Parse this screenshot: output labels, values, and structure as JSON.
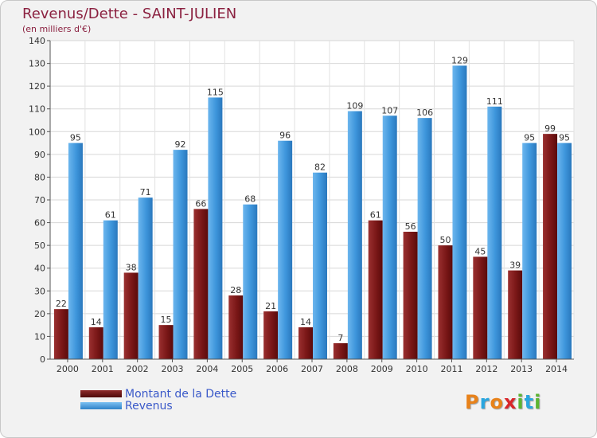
{
  "title": "Revenus/Dette - SAINT-JULIEN",
  "subtitle": "(en milliers d'€)",
  "logo": {
    "letters": [
      "P",
      "r",
      "o",
      "x",
      "i",
      "t",
      "i"
    ],
    "colors": [
      "#e8821a",
      "#2aa6df",
      "#e8821a",
      "#d9262a",
      "#5cb531",
      "#2aa6df",
      "#5cb531"
    ]
  },
  "colors": {
    "dette": "#7b1a1a",
    "revenus": "#3d95db",
    "title": "#8b2140",
    "legend_text": "#3a59c9"
  },
  "chart_data": {
    "type": "bar",
    "categories": [
      "2000",
      "2001",
      "2002",
      "2003",
      "2004",
      "2005",
      "2006",
      "2007",
      "2008",
      "2009",
      "2010",
      "2011",
      "2012",
      "2013",
      "2014"
    ],
    "series": [
      {
        "name": "Montant de la Dette",
        "values": [
          22,
          14,
          38,
          15,
          66,
          28,
          21,
          14,
          7,
          61,
          56,
          50,
          45,
          39,
          99
        ]
      },
      {
        "name": "Revenus",
        "values": [
          95,
          61,
          71,
          92,
          115,
          68,
          96,
          82,
          109,
          107,
          106,
          129,
          111,
          95,
          95
        ]
      }
    ],
    "title": "Revenus/Dette - SAINT-JULIEN",
    "ylabel": "(en milliers d'€)",
    "ylim": [
      0,
      140
    ],
    "yticks": [
      0,
      10,
      20,
      30,
      40,
      50,
      60,
      70,
      80,
      90,
      100,
      110,
      120,
      130,
      140
    ],
    "grid": true,
    "legend_position": "bottom-left"
  }
}
